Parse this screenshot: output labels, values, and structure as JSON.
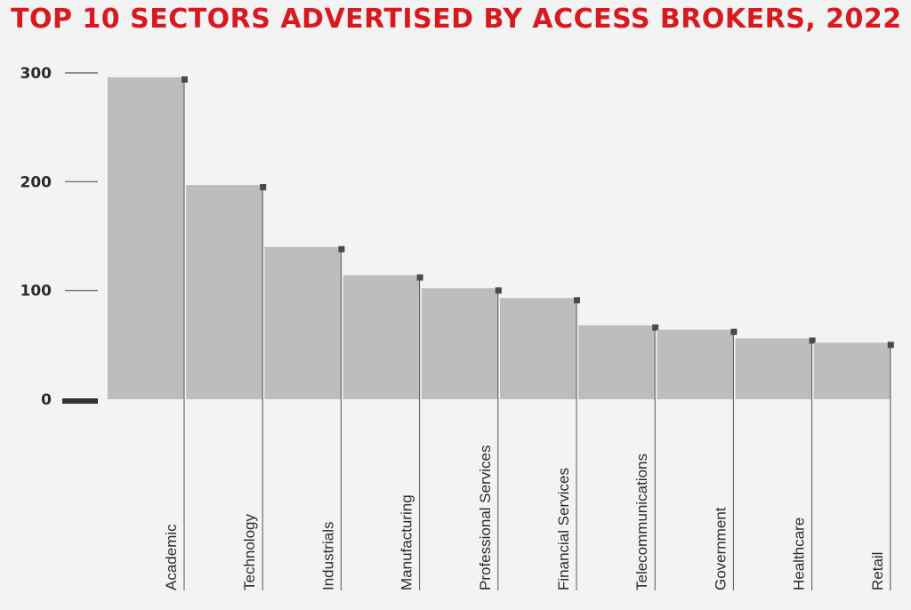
{
  "chart_data": {
    "type": "bar",
    "title": "TOP 10 SECTORS ADVERTISED BY ACCESS BROKERS, 2022",
    "categories": [
      "Academic",
      "Technology",
      "Industrials",
      "Manufacturing",
      "Professional Services",
      "Financial Services",
      "Telecommunications",
      "Government",
      "Healthcare",
      "Retail"
    ],
    "values": [
      296,
      197,
      140,
      114,
      102,
      93,
      68,
      64,
      56,
      52
    ],
    "yticks": [
      0,
      100,
      200,
      300
    ],
    "ylim": [
      0,
      300
    ],
    "xlabel": "",
    "ylabel": "",
    "grid": false,
    "legend": "none",
    "colors": {
      "title": "#d71920",
      "bar": "#bdbdbd",
      "marker": "#4a4a4a",
      "axis": "#555555",
      "baseline": "#333333",
      "background": "#f3f3f3"
    }
  }
}
